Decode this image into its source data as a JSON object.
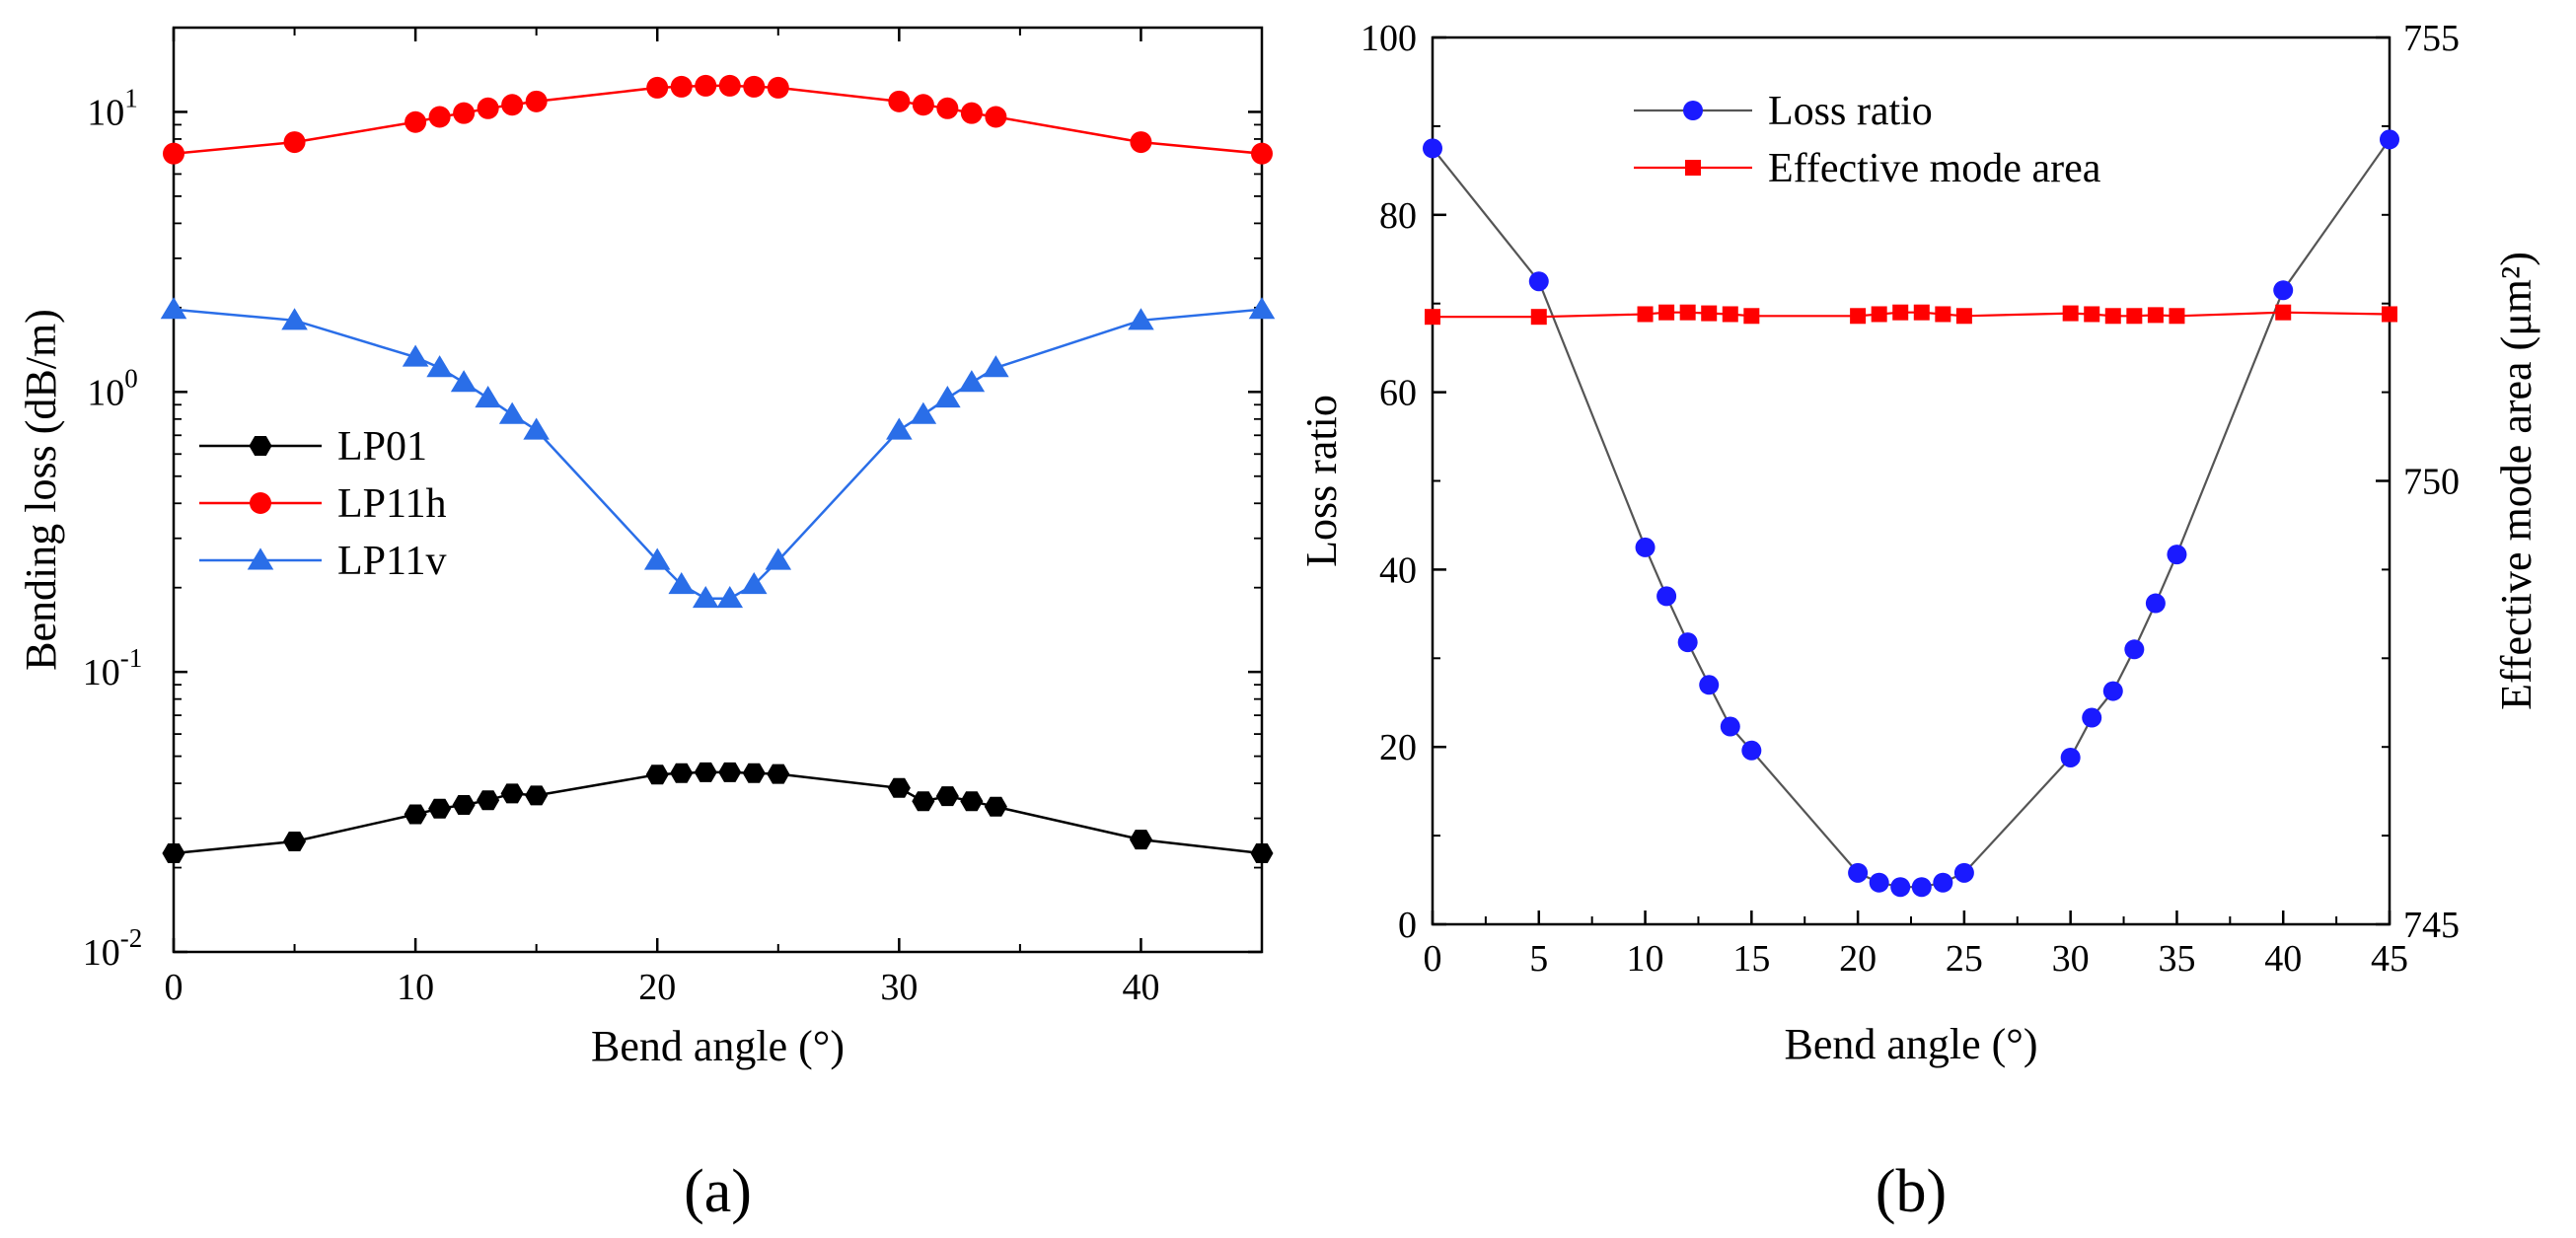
{
  "chart_data": [
    {
      "type": "line",
      "scale_y": "log",
      "panel_label": "(a)",
      "xlabel": "Bend angle (°)",
      "ylabel": "Bending loss (dB/m)",
      "xlim": [
        0,
        45
      ],
      "ylim": [
        0.01,
        20
      ],
      "xticks": [
        0,
        10,
        20,
        30,
        40
      ],
      "xtick_labels": [
        "0",
        "10",
        "20",
        "30",
        "40"
      ],
      "yticks": [
        {
          "value": 10,
          "base": "10",
          "exp": "1"
        },
        {
          "value": 1,
          "base": "10",
          "exp": "0"
        },
        {
          "value": 0.1,
          "base": "10",
          "exp": "-1"
        },
        {
          "value": 0.01,
          "base": "10",
          "exp": "-2"
        }
      ],
      "legend_position": "center-left",
      "series": [
        {
          "name": "LP01",
          "color": "#000000",
          "marker": "hexagon",
          "x": [
            0,
            5,
            10,
            11,
            12,
            13,
            14,
            15,
            20,
            21,
            22,
            23,
            24,
            25,
            30,
            31,
            32,
            33,
            34,
            40,
            45
          ],
          "y": [
            0.0225,
            0.0248,
            0.031,
            0.0325,
            0.0335,
            0.0348,
            0.0368,
            0.0362,
            0.043,
            0.0435,
            0.0438,
            0.0438,
            0.0435,
            0.0432,
            0.0385,
            0.0345,
            0.036,
            0.0345,
            0.033,
            0.0252,
            0.0225
          ]
        },
        {
          "name": "LP11h",
          "color": "#ff0000",
          "marker": "circle",
          "x": [
            0,
            5,
            10,
            11,
            12,
            13,
            14,
            15,
            20,
            21,
            22,
            23,
            24,
            25,
            30,
            31,
            32,
            33,
            34,
            40,
            45
          ],
          "y": [
            7.1,
            7.8,
            9.2,
            9.6,
            9.9,
            10.3,
            10.6,
            10.9,
            12.2,
            12.3,
            12.4,
            12.4,
            12.3,
            12.2,
            10.9,
            10.6,
            10.3,
            9.9,
            9.6,
            7.8,
            7.1
          ]
        },
        {
          "name": "LP11v",
          "color": "#2a6ee8",
          "marker": "triangle",
          "x": [
            0,
            5,
            10,
            11,
            12,
            13,
            14,
            15,
            20,
            21,
            22,
            23,
            24,
            25,
            30,
            31,
            32,
            33,
            34,
            40,
            45
          ],
          "y": [
            1.97,
            1.8,
            1.33,
            1.22,
            1.08,
            0.95,
            0.83,
            0.73,
            0.25,
            0.205,
            0.183,
            0.183,
            0.205,
            0.25,
            0.73,
            0.83,
            0.95,
            1.08,
            1.22,
            1.8,
            1.97
          ]
        }
      ]
    },
    {
      "type": "line",
      "panel_label": "(b)",
      "xlabel": "Bend angle (°)",
      "ylabel": "Loss ratio",
      "y2label": "Effective mode area (μm²)",
      "xlim": [
        0,
        45
      ],
      "ylim": [
        0,
        100
      ],
      "y2lim": [
        745,
        755
      ],
      "xticks": [
        0,
        5,
        10,
        15,
        20,
        25,
        30,
        35,
        40,
        45
      ],
      "xtick_labels": [
        "0",
        "5",
        "10",
        "15",
        "20",
        "25",
        "30",
        "35",
        "40",
        "45"
      ],
      "yticks": [
        0,
        20,
        40,
        60,
        80,
        100
      ],
      "ytick_labels": [
        "0",
        "20",
        "40",
        "60",
        "80",
        "100"
      ],
      "y2ticks": [
        745,
        750,
        755
      ],
      "y2tick_labels": [
        "745",
        "750",
        "755"
      ],
      "legend_position": "top-center",
      "series": [
        {
          "name": "Loss ratio",
          "color": "#1a1aff",
          "line_color": "#555555",
          "marker": "circle",
          "axis": "left",
          "x": [
            0,
            5,
            10,
            11,
            12,
            13,
            14,
            15,
            20,
            21,
            22,
            23,
            24,
            25,
            30,
            31,
            32,
            33,
            34,
            35,
            40,
            45
          ],
          "y": [
            87.5,
            72.5,
            42.5,
            37.0,
            31.8,
            27.0,
            22.3,
            19.6,
            5.8,
            4.7,
            4.2,
            4.2,
            4.7,
            5.8,
            18.8,
            23.3,
            26.3,
            31.0,
            36.2,
            41.7,
            71.5,
            88.5
          ]
        },
        {
          "name": "Effective mode area",
          "color": "#ff0000",
          "marker": "square",
          "axis": "right",
          "x": [
            0,
            5,
            10,
            11,
            12,
            13,
            14,
            15,
            20,
            21,
            22,
            23,
            24,
            25,
            30,
            31,
            32,
            33,
            34,
            35,
            40,
            45
          ],
          "y": [
            751.85,
            751.85,
            751.88,
            751.9,
            751.9,
            751.89,
            751.88,
            751.86,
            751.86,
            751.88,
            751.9,
            751.9,
            751.88,
            751.86,
            751.89,
            751.88,
            751.86,
            751.86,
            751.87,
            751.86,
            751.9,
            751.88
          ]
        }
      ]
    }
  ]
}
